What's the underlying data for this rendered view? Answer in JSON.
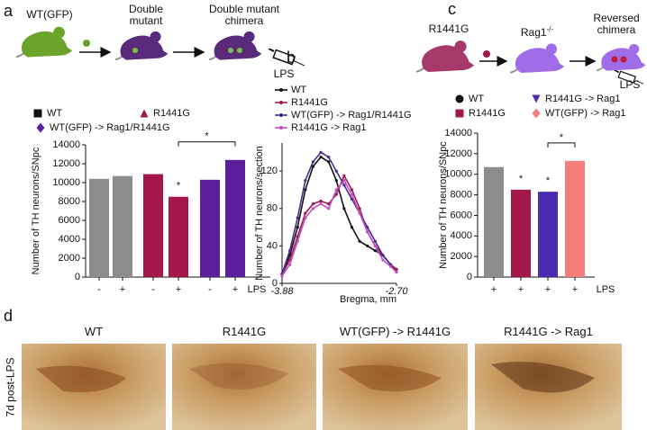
{
  "panel_labels": [
    "a",
    "b",
    "c",
    "d"
  ],
  "schematic_a": {
    "labels": [
      "WT(GFP)",
      "Double mutant",
      "Double mutant chimera"
    ],
    "lps": "LPS"
  },
  "schematic_c": {
    "labels": [
      "R1441G",
      "Rag1",
      "Reversed chimera"
    ],
    "superscript": "-/-",
    "lps": "LPS"
  },
  "panel_d": {
    "side_label": "7d post-LPS",
    "titles": [
      "WT",
      "R1441G",
      "WT(GFP) -> R1441G",
      "R1441G -> Rag1"
    ]
  },
  "chart_data": [
    {
      "type": "bar",
      "y_label": "Number of TH neurons/SNpc",
      "x_label": "LPS",
      "categories": [
        "-",
        "+",
        "-",
        "+",
        "-",
        "+"
      ],
      "values": [
        10400,
        10700,
        10900,
        8500,
        10300,
        12400
      ],
      "colors": [
        "#8c8c8c",
        "#8c8c8c",
        "#a3174a",
        "#a3174a",
        "#5b1f9b",
        "#5b1f9b"
      ],
      "ylim": [
        0,
        14000
      ],
      "yticks": [
        0,
        2000,
        4000,
        6000,
        8000,
        10000,
        12000,
        14000
      ],
      "legend": [
        {
          "name": "WT",
          "color": "#111111",
          "marker": "square"
        },
        {
          "name": "R1441G",
          "color": "#a3174a",
          "marker": "triangle"
        },
        {
          "name": "WT(GFP) -> Rag1/R1441G",
          "color": "#5b1f9b",
          "marker": "diamond"
        }
      ],
      "annotations": [
        "*",
        "*"
      ]
    },
    {
      "type": "line",
      "y_label": "Number of TH neurons/section",
      "x_label": "Bregma, mm",
      "x": [
        -3.88,
        -3.8,
        -3.72,
        -3.64,
        -3.56,
        -3.48,
        -3.4,
        -3.32,
        -3.24,
        -3.16,
        -3.08,
        -3.0,
        -2.92,
        -2.84,
        -2.76,
        -2.7
      ],
      "xlim": [
        -3.88,
        -2.7
      ],
      "xticks": [
        -3.88,
        {
          "value": -2.7,
          "label": "-2.70"
        }
      ],
      "ylim": [
        0,
        150
      ],
      "yticks": [
        0,
        40,
        80,
        120
      ],
      "series": [
        {
          "name": "WT",
          "color": "#111111",
          "values": [
            10,
            30,
            60,
            100,
            125,
            135,
            130,
            110,
            80,
            60,
            45,
            40,
            35,
            30,
            20,
            15
          ]
        },
        {
          "name": "R1441G",
          "color": "#9b1b4f",
          "values": [
            10,
            25,
            50,
            75,
            85,
            88,
            85,
            95,
            115,
            100,
            80,
            55,
            40,
            30,
            20,
            15
          ]
        },
        {
          "name": "WT(GFP) -> Rag1/R1441G",
          "color": "#4b2a8a",
          "values": [
            10,
            35,
            70,
            110,
            130,
            140,
            135,
            120,
            105,
            90,
            75,
            60,
            45,
            30,
            20,
            12
          ]
        },
        {
          "name": "R1441G -> Rag1",
          "color": "#c24fc6",
          "values": [
            8,
            20,
            45,
            70,
            80,
            85,
            80,
            100,
            110,
            95,
            75,
            55,
            40,
            25,
            18,
            12
          ]
        }
      ]
    },
    {
      "type": "bar",
      "y_label": "Number of TH neurons/SNpc",
      "x_label": "LPS",
      "categories": [
        "+",
        "+",
        "+",
        "+"
      ],
      "values": [
        10700,
        8500,
        8300,
        11300
      ],
      "colors": [
        "#8c8c8c",
        "#a3174a",
        "#4a2ab0",
        "#f47f7a"
      ],
      "ylim": [
        0,
        14000
      ],
      "yticks": [
        0,
        2000,
        4000,
        6000,
        8000,
        10000,
        12000,
        14000
      ],
      "legend": [
        {
          "name": "WT",
          "color": "#111111",
          "marker": "circle"
        },
        {
          "name": "R1441G -> Rag1",
          "color": "#4a2ab0",
          "marker": "down"
        },
        {
          "name": "R1441G",
          "color": "#a3174a",
          "marker": "square"
        },
        {
          "name": "WT(GFP) -> Rag1",
          "color": "#f47f7a",
          "marker": "diamond"
        }
      ],
      "annotations": [
        "*",
        "*",
        "*"
      ]
    }
  ]
}
